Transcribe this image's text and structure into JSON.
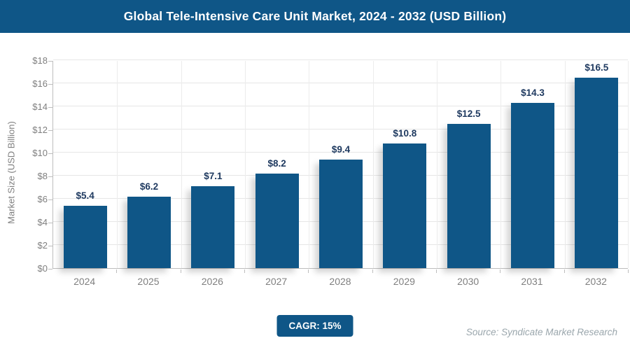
{
  "header": {
    "title": "Global Tele-Intensive Care Unit Market, 2024 - 2032 (USD Billion)",
    "bg_color": "#0F5687",
    "text_color": "#FFFFFF"
  },
  "chart_data": {
    "type": "bar",
    "title": "Global Tele-Intensive Care Unit Market, 2024 - 2032 (USD Billion)",
    "categories": [
      "2024",
      "2025",
      "2026",
      "2027",
      "2028",
      "2029",
      "2030",
      "2031",
      "2032"
    ],
    "values": [
      5.4,
      6.2,
      7.1,
      8.2,
      9.4,
      10.8,
      12.5,
      14.3,
      16.5
    ],
    "value_labels": [
      "$5.4",
      "$6.2",
      "$7.1",
      "$8.2",
      "$9.4",
      "$10.8",
      "$12.5",
      "$14.3",
      "$16.5"
    ],
    "xlabel": "",
    "ylabel": "Market Size (USD Billion)",
    "ylim": [
      0,
      18
    ],
    "ytick_step": 2,
    "ytick_labels": [
      "$0",
      "$2",
      "$4",
      "$6",
      "$8",
      "$10",
      "$12",
      "$14",
      "$16",
      "$18"
    ],
    "grid": true,
    "legend": "none",
    "bar_color": "#0F5687",
    "value_label_color": "#1F3A60",
    "axis_text_color": "#7F7F7F"
  },
  "footer": {
    "cagr_label": "CAGR: 15%",
    "cagr_bg_color": "#0F5687",
    "source": "Source: Syndicate Market Research"
  }
}
